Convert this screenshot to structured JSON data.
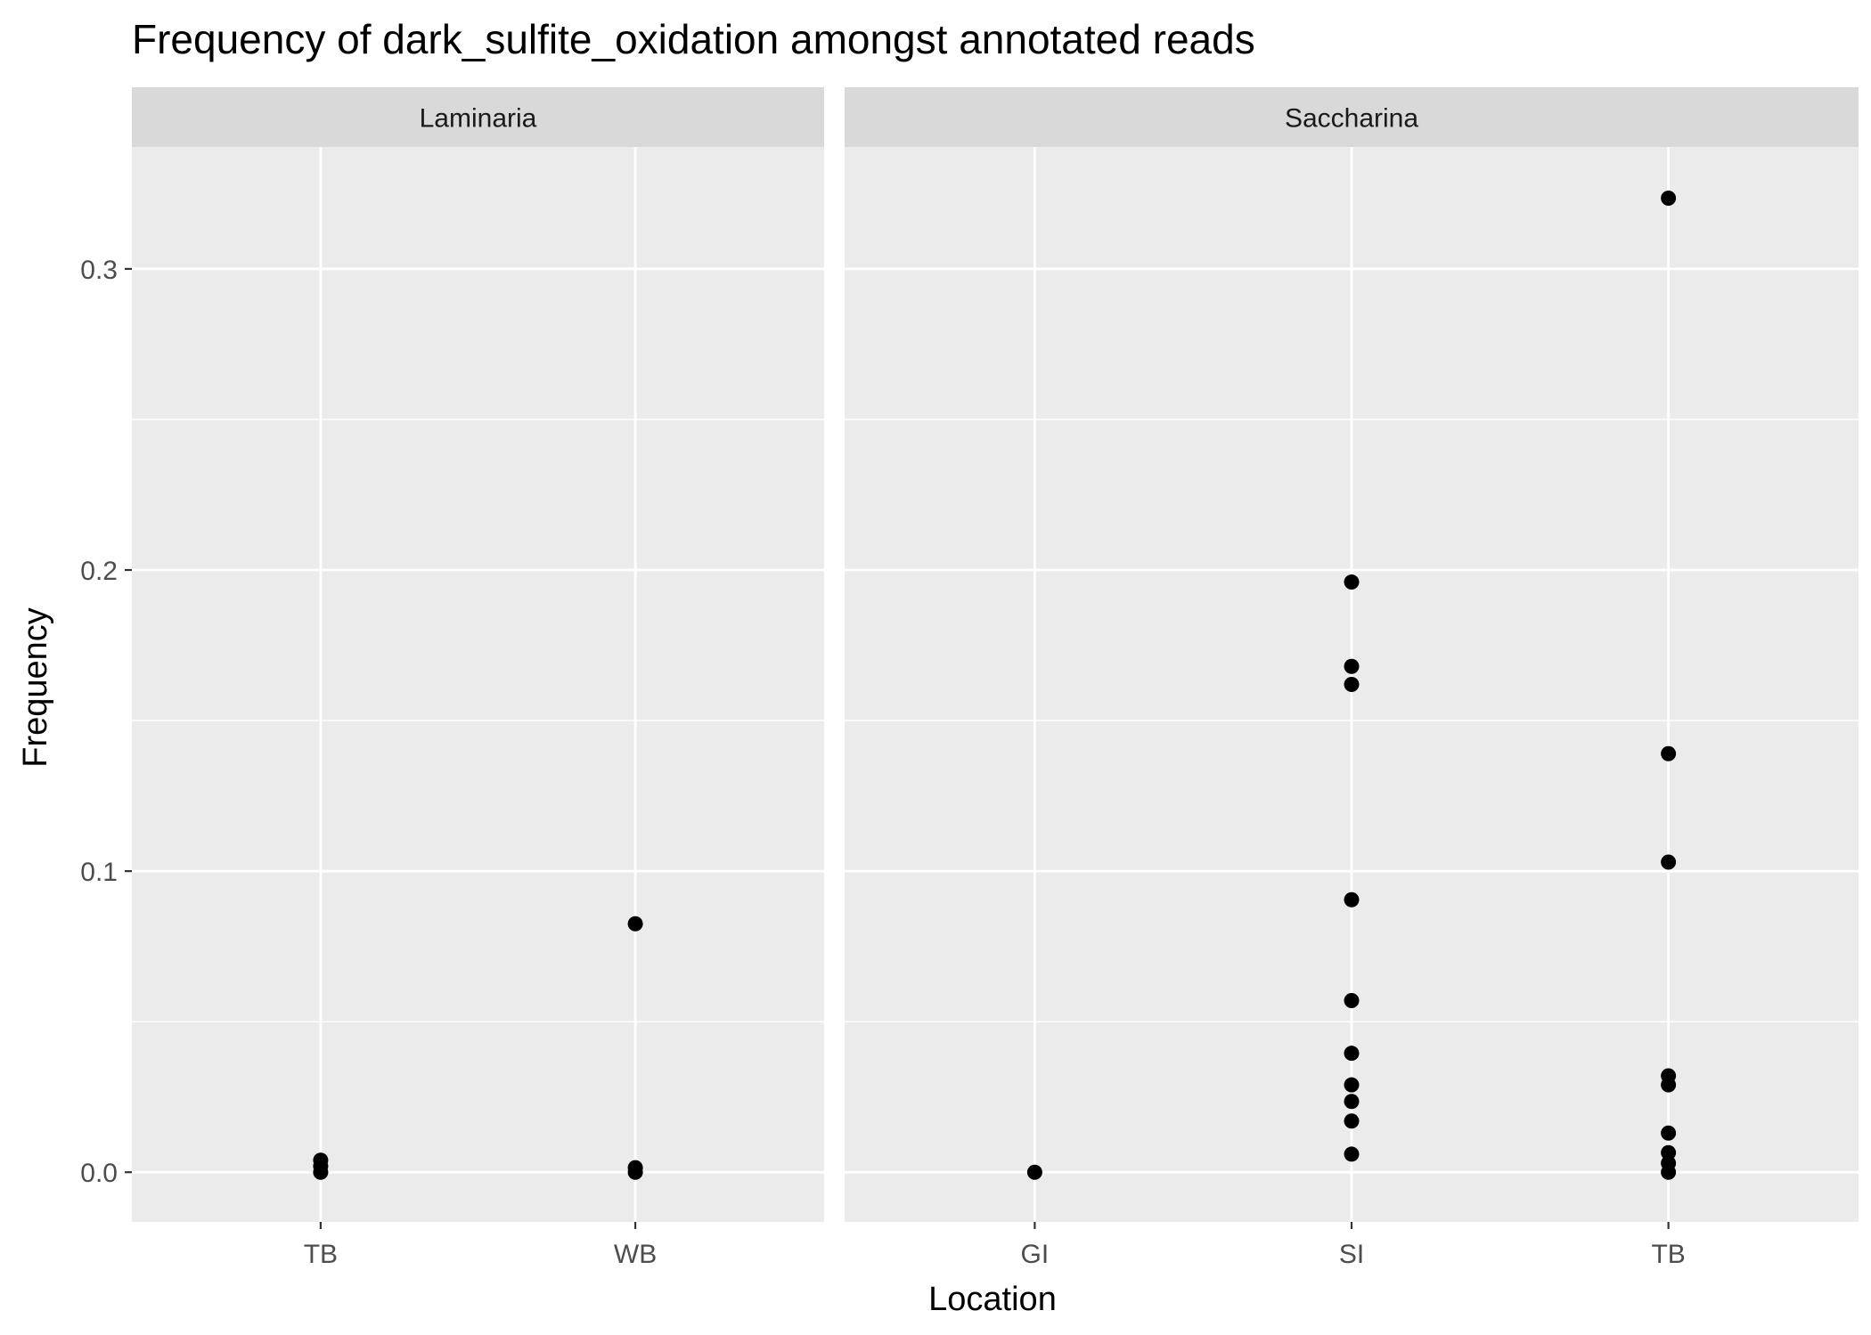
{
  "chart_data": {
    "type": "scatter",
    "title": "Frequency of dark_sulfite_oxidation amongst annotated reads",
    "xlabel": "Location",
    "ylabel": "Frequency",
    "ylim": [
      -0.0165,
      0.3405
    ],
    "yticks": [
      0.0,
      0.1,
      0.2,
      0.3
    ],
    "ytick_labels": [
      "0.0",
      "0.1",
      "0.2",
      "0.3"
    ],
    "grid": true,
    "point_color": "#000000",
    "panel_background": "#ebebeb",
    "strip_background": "#d9d9d9",
    "grid_color": "#ffffff",
    "facets": [
      {
        "label": "Laminaria",
        "categories": [
          "TB",
          "WB"
        ],
        "points": [
          {
            "x": "TB",
            "y": 0.004
          },
          {
            "x": "TB",
            "y": 0.002
          },
          {
            "x": "TB",
            "y": 0.0
          },
          {
            "x": "WB",
            "y": 0.0825
          },
          {
            "x": "WB",
            "y": 0.0015
          },
          {
            "x": "WB",
            "y": 0.0
          }
        ]
      },
      {
        "label": "Saccharina",
        "categories": [
          "GI",
          "SI",
          "TB"
        ],
        "points": [
          {
            "x": "GI",
            "y": 0.0
          },
          {
            "x": "SI",
            "y": 0.196
          },
          {
            "x": "SI",
            "y": 0.168
          },
          {
            "x": "SI",
            "y": 0.162
          },
          {
            "x": "SI",
            "y": 0.0905
          },
          {
            "x": "SI",
            "y": 0.057
          },
          {
            "x": "SI",
            "y": 0.0395
          },
          {
            "x": "SI",
            "y": 0.029
          },
          {
            "x": "SI",
            "y": 0.0235
          },
          {
            "x": "SI",
            "y": 0.017
          },
          {
            "x": "SI",
            "y": 0.006
          },
          {
            "x": "TB",
            "y": 0.3235
          },
          {
            "x": "TB",
            "y": 0.139
          },
          {
            "x": "TB",
            "y": 0.103
          },
          {
            "x": "TB",
            "y": 0.032
          },
          {
            "x": "TB",
            "y": 0.029
          },
          {
            "x": "TB",
            "y": 0.013
          },
          {
            "x": "TB",
            "y": 0.0065
          },
          {
            "x": "TB",
            "y": 0.003
          },
          {
            "x": "TB",
            "y": 0.0
          }
        ]
      }
    ]
  }
}
